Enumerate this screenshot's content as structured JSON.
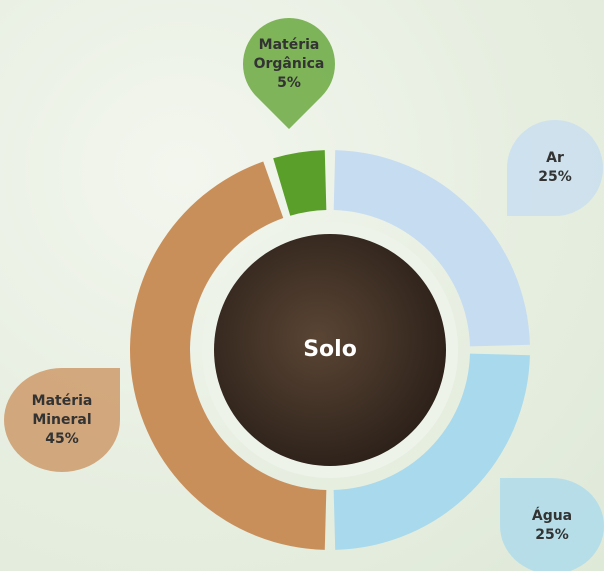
{
  "chart_data": {
    "type": "donut",
    "center_label": "Solo",
    "categories": [
      "Ar",
      "Água",
      "Matéria Mineral",
      "Matéria Orgânica"
    ],
    "values": [
      25,
      25,
      45,
      5
    ],
    "value_labels": [
      "25%",
      "25%",
      "45%",
      "5%"
    ],
    "colors": [
      "#c6dcf1",
      "#a8d9ec",
      "#c98f5b",
      "#5a9f2a"
    ]
  }
}
